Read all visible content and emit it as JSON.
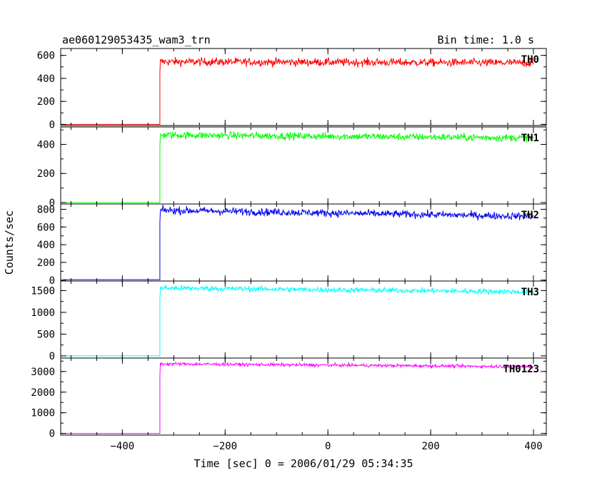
{
  "title": "ae060129053435_wam3_trn",
  "bin_time": "Bin time: 1.0 s",
  "ylabel": "Counts/sec",
  "xlabel": "Time [sec] 0 = 2006/01/29 05:34:35",
  "chart_data": {
    "type": "line",
    "title": "ae060129053435_wam3_trn",
    "xlabel": "Time [sec] 0 = 2006/01/29 05:34:35",
    "ylabel": "Counts/sec",
    "xlim": [
      -520,
      425
    ],
    "x_ticks": [
      -400,
      -200,
      0,
      200,
      400
    ],
    "x_tick_labels": [
      "−400",
      "−200",
      "0",
      "200",
      "400"
    ],
    "bin_time_s": 1.0,
    "step_time": -327,
    "data_end": 400,
    "panels": [
      {
        "name": "TH0",
        "color": "#ff0000",
        "ylim": [
          -10,
          660
        ],
        "yticks": [
          0,
          200,
          400,
          600
        ],
        "pre_level": 0,
        "post_level": 545,
        "post_level_end": 535,
        "noise": 25
      },
      {
        "name": "TH1",
        "color": "#00ff00",
        "ylim": [
          -10,
          520
        ],
        "yticks": [
          0,
          200,
          400
        ],
        "pre_level": 0,
        "post_level": 465,
        "post_level_end": 445,
        "noise": 18
      },
      {
        "name": "TH2",
        "color": "#0000ee",
        "ylim": [
          -10,
          860
        ],
        "yticks": [
          0,
          200,
          400,
          600,
          800
        ],
        "pre_level": 5,
        "post_level": 790,
        "post_level_end": 720,
        "noise": 30
      },
      {
        "name": "TH3",
        "color": "#00ffff",
        "ylim": [
          -50,
          1720
        ],
        "yticks": [
          0,
          500,
          1000,
          1500
        ],
        "pre_level": 0,
        "post_level": 1560,
        "post_level_end": 1470,
        "noise": 45
      },
      {
        "name": "TH0123",
        "color": "#ff00ff",
        "ylim": [
          -80,
          3650
        ],
        "yticks": [
          0,
          1000,
          2000,
          3000
        ],
        "pre_level": 0,
        "post_level": 3370,
        "post_level_end": 3230,
        "noise": 55
      }
    ]
  }
}
